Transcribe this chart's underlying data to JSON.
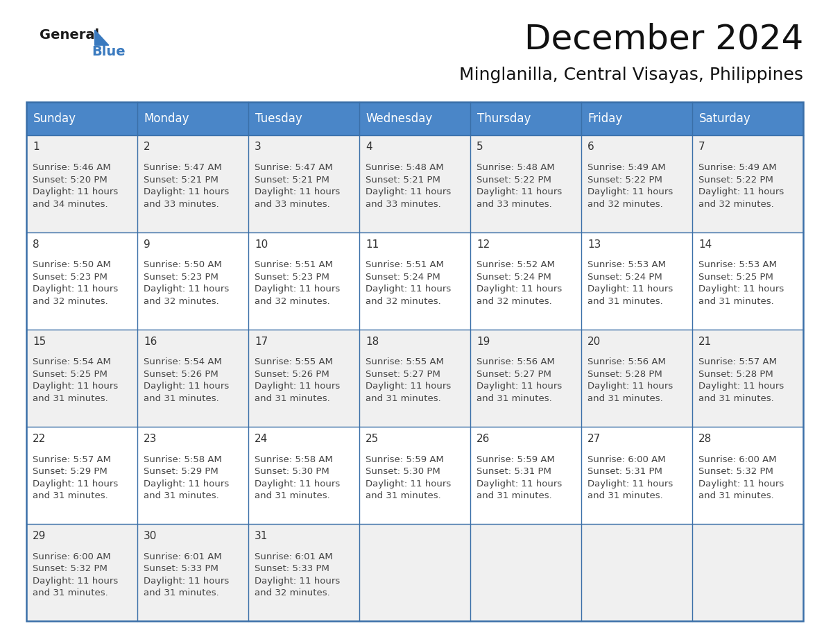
{
  "title": "December 2024",
  "subtitle": "Minglanilla, Central Visayas, Philippines",
  "header_bg_color": "#4a86c8",
  "header_text_color": "#ffffff",
  "border_color": "#3a6fa8",
  "text_color": "#333333",
  "days_of_week": [
    "Sunday",
    "Monday",
    "Tuesday",
    "Wednesday",
    "Thursday",
    "Friday",
    "Saturday"
  ],
  "row_colors": [
    "#f0f0f0",
    "#ffffff",
    "#f0f0f0",
    "#ffffff",
    "#f0f0f0"
  ],
  "calendar_data": [
    [
      {
        "day": 1,
        "sunrise": "5:46 AM",
        "sunset": "5:20 PM",
        "daylight_a": "11 hours",
        "daylight_b": "and 34 minutes."
      },
      {
        "day": 2,
        "sunrise": "5:47 AM",
        "sunset": "5:21 PM",
        "daylight_a": "11 hours",
        "daylight_b": "and 33 minutes."
      },
      {
        "day": 3,
        "sunrise": "5:47 AM",
        "sunset": "5:21 PM",
        "daylight_a": "11 hours",
        "daylight_b": "and 33 minutes."
      },
      {
        "day": 4,
        "sunrise": "5:48 AM",
        "sunset": "5:21 PM",
        "daylight_a": "11 hours",
        "daylight_b": "and 33 minutes."
      },
      {
        "day": 5,
        "sunrise": "5:48 AM",
        "sunset": "5:22 PM",
        "daylight_a": "11 hours",
        "daylight_b": "and 33 minutes."
      },
      {
        "day": 6,
        "sunrise": "5:49 AM",
        "sunset": "5:22 PM",
        "daylight_a": "11 hours",
        "daylight_b": "and 32 minutes."
      },
      {
        "day": 7,
        "sunrise": "5:49 AM",
        "sunset": "5:22 PM",
        "daylight_a": "11 hours",
        "daylight_b": "and 32 minutes."
      }
    ],
    [
      {
        "day": 8,
        "sunrise": "5:50 AM",
        "sunset": "5:23 PM",
        "daylight_a": "11 hours",
        "daylight_b": "and 32 minutes."
      },
      {
        "day": 9,
        "sunrise": "5:50 AM",
        "sunset": "5:23 PM",
        "daylight_a": "11 hours",
        "daylight_b": "and 32 minutes."
      },
      {
        "day": 10,
        "sunrise": "5:51 AM",
        "sunset": "5:23 PM",
        "daylight_a": "11 hours",
        "daylight_b": "and 32 minutes."
      },
      {
        "day": 11,
        "sunrise": "5:51 AM",
        "sunset": "5:24 PM",
        "daylight_a": "11 hours",
        "daylight_b": "and 32 minutes."
      },
      {
        "day": 12,
        "sunrise": "5:52 AM",
        "sunset": "5:24 PM",
        "daylight_a": "11 hours",
        "daylight_b": "and 32 minutes."
      },
      {
        "day": 13,
        "sunrise": "5:53 AM",
        "sunset": "5:24 PM",
        "daylight_a": "11 hours",
        "daylight_b": "and 31 minutes."
      },
      {
        "day": 14,
        "sunrise": "5:53 AM",
        "sunset": "5:25 PM",
        "daylight_a": "11 hours",
        "daylight_b": "and 31 minutes."
      }
    ],
    [
      {
        "day": 15,
        "sunrise": "5:54 AM",
        "sunset": "5:25 PM",
        "daylight_a": "11 hours",
        "daylight_b": "and 31 minutes."
      },
      {
        "day": 16,
        "sunrise": "5:54 AM",
        "sunset": "5:26 PM",
        "daylight_a": "11 hours",
        "daylight_b": "and 31 minutes."
      },
      {
        "day": 17,
        "sunrise": "5:55 AM",
        "sunset": "5:26 PM",
        "daylight_a": "11 hours",
        "daylight_b": "and 31 minutes."
      },
      {
        "day": 18,
        "sunrise": "5:55 AM",
        "sunset": "5:27 PM",
        "daylight_a": "11 hours",
        "daylight_b": "and 31 minutes."
      },
      {
        "day": 19,
        "sunrise": "5:56 AM",
        "sunset": "5:27 PM",
        "daylight_a": "11 hours",
        "daylight_b": "and 31 minutes."
      },
      {
        "day": 20,
        "sunrise": "5:56 AM",
        "sunset": "5:28 PM",
        "daylight_a": "11 hours",
        "daylight_b": "and 31 minutes."
      },
      {
        "day": 21,
        "sunrise": "5:57 AM",
        "sunset": "5:28 PM",
        "daylight_a": "11 hours",
        "daylight_b": "and 31 minutes."
      }
    ],
    [
      {
        "day": 22,
        "sunrise": "5:57 AM",
        "sunset": "5:29 PM",
        "daylight_a": "11 hours",
        "daylight_b": "and 31 minutes."
      },
      {
        "day": 23,
        "sunrise": "5:58 AM",
        "sunset": "5:29 PM",
        "daylight_a": "11 hours",
        "daylight_b": "and 31 minutes."
      },
      {
        "day": 24,
        "sunrise": "5:58 AM",
        "sunset": "5:30 PM",
        "daylight_a": "11 hours",
        "daylight_b": "and 31 minutes."
      },
      {
        "day": 25,
        "sunrise": "5:59 AM",
        "sunset": "5:30 PM",
        "daylight_a": "11 hours",
        "daylight_b": "and 31 minutes."
      },
      {
        "day": 26,
        "sunrise": "5:59 AM",
        "sunset": "5:31 PM",
        "daylight_a": "11 hours",
        "daylight_b": "and 31 minutes."
      },
      {
        "day": 27,
        "sunrise": "6:00 AM",
        "sunset": "5:31 PM",
        "daylight_a": "11 hours",
        "daylight_b": "and 31 minutes."
      },
      {
        "day": 28,
        "sunrise": "6:00 AM",
        "sunset": "5:32 PM",
        "daylight_a": "11 hours",
        "daylight_b": "and 31 minutes."
      }
    ],
    [
      {
        "day": 29,
        "sunrise": "6:00 AM",
        "sunset": "5:32 PM",
        "daylight_a": "11 hours",
        "daylight_b": "and 31 minutes."
      },
      {
        "day": 30,
        "sunrise": "6:01 AM",
        "sunset": "5:33 PM",
        "daylight_a": "11 hours",
        "daylight_b": "and 31 minutes."
      },
      {
        "day": 31,
        "sunrise": "6:01 AM",
        "sunset": "5:33 PM",
        "daylight_a": "11 hours",
        "daylight_b": "and 32 minutes."
      },
      null,
      null,
      null,
      null
    ]
  ],
  "logo_general_color": "#1a1a1a",
  "logo_blue_color": "#3a7abf",
  "fig_width": 11.88,
  "fig_height": 9.18,
  "title_fontsize": 36,
  "subtitle_fontsize": 18,
  "day_header_fontsize": 12,
  "day_num_fontsize": 11,
  "cell_text_fontsize": 9.5
}
